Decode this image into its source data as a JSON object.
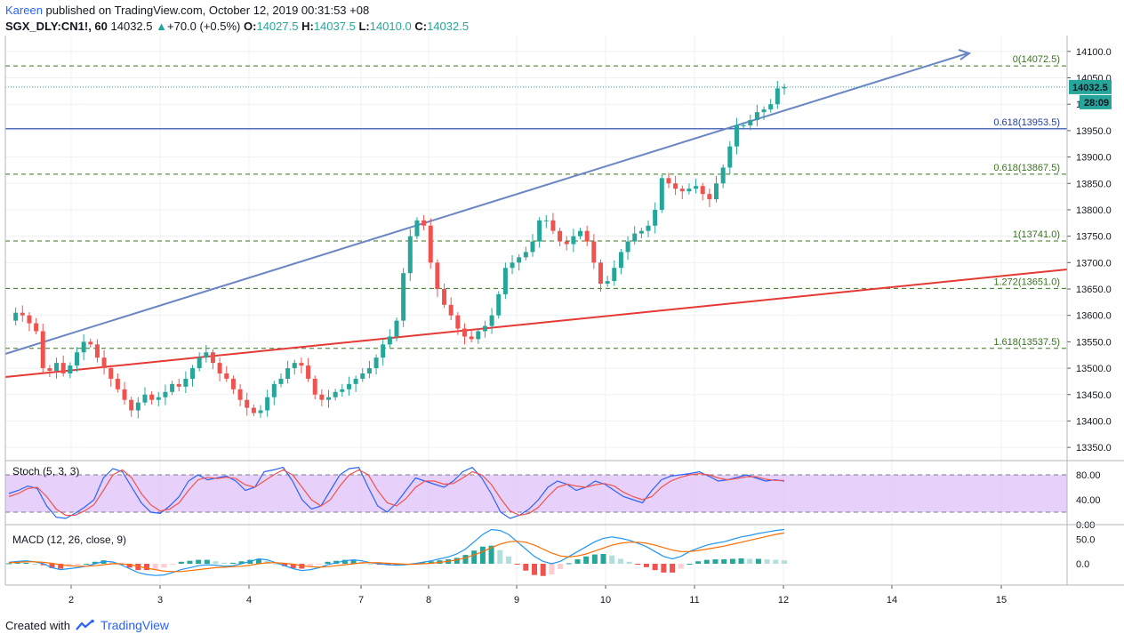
{
  "header": {
    "author": "Kareen",
    "published": "published on TradingView.com, October 12, 2019 00:31:53 +08"
  },
  "ohlc": {
    "symbol": "SGX_DLY:CN1!, 60",
    "last": "14032.5",
    "change": "+70.0 (+0.5%)",
    "o_label": "O:",
    "o": "14027.5",
    "h_label": "H:",
    "h": "14037.5",
    "l_label": "L:",
    "l": "14010.0",
    "c_label": "C:",
    "c": "14032.5"
  },
  "footer": {
    "created": "Created with",
    "brand": "TradingView"
  },
  "colors": {
    "up": "#26a69a",
    "down": "#ef5350",
    "fib": "#38761d",
    "blue_line": "#6a86c4",
    "red_line": "#e53935",
    "stoch_k": "#2962ff",
    "stoch_d": "#ef5350",
    "stoch_band": "#e1c4f7",
    "macd_line": "#2196f3",
    "signal_line": "#ff6d00"
  },
  "chart_data": {
    "type": "candlestick",
    "price_axis": {
      "ticks": [
        "14100.0",
        "14050.0",
        "14000.0",
        "13950.0",
        "13900.0",
        "13850.0",
        "13800.0",
        "13750.0",
        "13700.0",
        "13650.0",
        "13600.0",
        "13550.0",
        "13500.0",
        "13450.0",
        "13400.0",
        "13350.0"
      ],
      "range": [
        13330,
        14130
      ]
    },
    "time_axis": [
      "2",
      "3",
      "4",
      "7",
      "8",
      "9",
      "10",
      "11",
      "12",
      "14",
      "15"
    ],
    "last_price_label": "14032.5",
    "countdown_label": "28:09",
    "fib_levels": [
      {
        "label": "0(14072.5)",
        "value": 14072.5
      },
      {
        "label": "0.618(13953.5)",
        "value": 13953.5
      },
      {
        "label": "0.618(13867.5)",
        "value": 13867.5
      },
      {
        "label": "1(13741.0)",
        "value": 13741.0
      },
      {
        "label": "1.272(13651.0)",
        "value": 13651.0
      },
      {
        "label": "1.618(13537.5)",
        "value": 13537.5
      }
    ],
    "price_series": [
      13590,
      13605,
      13600,
      13585,
      13570,
      13500,
      13495,
      13510,
      13490,
      13505,
      13530,
      13550,
      13545,
      13520,
      13500,
      13480,
      13460,
      13440,
      13420,
      13435,
      13450,
      13440,
      13445,
      13455,
      13470,
      13465,
      13480,
      13500,
      13520,
      13530,
      13510,
      13490,
      13480,
      13460,
      13440,
      13425,
      13415,
      13420,
      13445,
      13470,
      13480,
      13500,
      13510,
      13505,
      13480,
      13450,
      13440,
      13445,
      13455,
      13460,
      13470,
      13480,
      13490,
      13500,
      13520,
      13545,
      13560,
      13590,
      13680,
      13750,
      13780,
      13770,
      13700,
      13650,
      13620,
      13600,
      13575,
      13560,
      13555,
      13570,
      13580,
      13600,
      13640,
      13690,
      13700,
      13710,
      13720,
      13740,
      13780,
      13780,
      13760,
      13740,
      13735,
      13750,
      13760,
      13740,
      13700,
      13660,
      13665,
      13690,
      13720,
      13740,
      13755,
      13760,
      13770,
      13800,
      13860,
      13850,
      13840,
      13835,
      13840,
      13845,
      13830,
      13820,
      13850,
      13880,
      13920,
      13960,
      13960,
      13970,
      13985,
      13990,
      14000,
      14030,
      14032.5
    ],
    "stoch": {
      "title": "Stoch (5, 3, 3)",
      "ticks": [
        "80.00",
        "40.00",
        "0.00"
      ],
      "k": [
        50,
        55,
        62,
        58,
        30,
        12,
        10,
        18,
        28,
        40,
        75,
        90,
        85,
        60,
        35,
        20,
        18,
        30,
        45,
        70,
        80,
        72,
        75,
        78,
        70,
        55,
        60,
        85,
        88,
        92,
        70,
        40,
        25,
        30,
        55,
        80,
        90,
        92,
        60,
        30,
        20,
        35,
        55,
        75,
        70,
        65,
        60,
        70,
        85,
        92,
        75,
        50,
        20,
        10,
        15,
        25,
        40,
        60,
        70,
        65,
        55,
        60,
        70,
        65,
        55,
        45,
        40,
        35,
        55,
        72,
        78,
        80,
        82,
        85,
        78,
        70,
        72,
        76,
        80,
        75,
        70,
        72,
        70
      ],
      "d": [
        45,
        50,
        58,
        60,
        45,
        25,
        15,
        15,
        22,
        32,
        55,
        80,
        88,
        75,
        50,
        32,
        22,
        25,
        35,
        55,
        72,
        76,
        74,
        76,
        74,
        64,
        60,
        70,
        80,
        88,
        80,
        60,
        40,
        30,
        40,
        62,
        80,
        88,
        80,
        55,
        35,
        30,
        42,
        60,
        70,
        70,
        65,
        66,
        75,
        85,
        80,
        65,
        42,
        22,
        15,
        18,
        28,
        45,
        60,
        65,
        62,
        60,
        64,
        66,
        62,
        52,
        45,
        40,
        45,
        60,
        70,
        76,
        80,
        82,
        80,
        75,
        72,
        74,
        77,
        77,
        73,
        71,
        71
      ]
    },
    "macd": {
      "title": "MACD (12, 26, close, 9)",
      "ticks": [
        "50.0",
        "0.0"
      ],
      "macd": [
        3,
        5,
        6,
        4,
        0,
        -8,
        -12,
        -10,
        -8,
        -5,
        0,
        5,
        4,
        -2,
        -10,
        -18,
        -22,
        -24,
        -23,
        -18,
        -12,
        -8,
        -4,
        -2,
        -3,
        -5,
        -4,
        0,
        5,
        10,
        8,
        2,
        -4,
        -10,
        -14,
        -12,
        -8,
        -2,
        2,
        6,
        8,
        6,
        2,
        0,
        -2,
        -3,
        -2,
        0,
        3,
        6,
        10,
        14,
        20,
        30,
        45,
        60,
        70,
        68,
        60,
        45,
        30,
        15,
        5,
        0,
        5,
        15,
        25,
        35,
        45,
        52,
        55,
        52,
        48,
        42,
        35,
        25,
        15,
        10,
        15,
        25,
        32,
        38,
        42,
        45,
        50,
        55,
        58,
        62,
        65,
        68,
        70
      ],
      "signal": [
        2,
        3,
        4,
        4,
        3,
        1,
        -2,
        -4,
        -5,
        -5,
        -4,
        -2,
        0,
        0,
        -2,
        -5,
        -9,
        -12,
        -15,
        -16,
        -16,
        -14,
        -12,
        -10,
        -8,
        -7,
        -6,
        -5,
        -3,
        0,
        2,
        2,
        1,
        -1,
        -4,
        -6,
        -7,
        -6,
        -4,
        -2,
        0,
        2,
        2,
        2,
        1,
        0,
        -1,
        -1,
        0,
        1,
        3,
        5,
        8,
        12,
        18,
        25,
        33,
        40,
        45,
        46,
        44,
        38,
        30,
        22,
        16,
        14,
        16,
        20,
        26,
        32,
        38,
        42,
        44,
        44,
        42,
        38,
        33,
        28,
        25,
        25,
        27,
        30,
        33,
        36,
        40,
        44,
        48,
        52,
        56,
        60,
        63
      ],
      "zero_label": "0.0"
    }
  }
}
